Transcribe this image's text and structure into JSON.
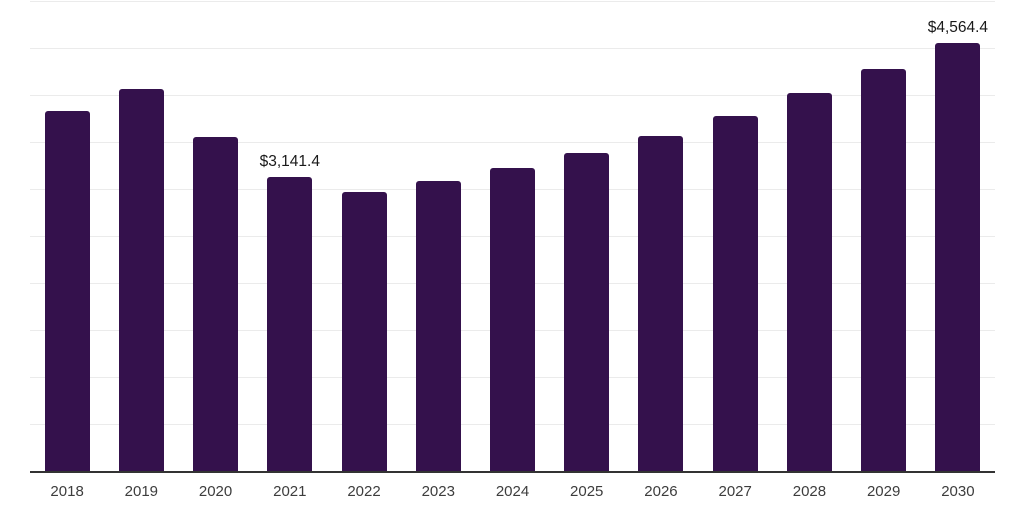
{
  "chart_data": {
    "type": "bar",
    "title": "",
    "xlabel": "",
    "ylabel": "",
    "categories": [
      "2018",
      "2019",
      "2020",
      "2021",
      "2022",
      "2023",
      "2024",
      "2025",
      "2026",
      "2027",
      "2028",
      "2029",
      "2030"
    ],
    "values": [
      3840,
      4070,
      3560,
      3141.4,
      2980,
      3100,
      3230,
      3390,
      3570,
      3790,
      4030,
      4290,
      4564.4
    ],
    "data_labels": {
      "2021": "$3,141.4",
      "2030": "$4,564.4"
    },
    "ylim": [
      0,
      5000
    ],
    "gridline_step": 500,
    "grid": "horizontal-only",
    "legend": "none",
    "colors": {
      "bar": "#34114C",
      "grid": "#ebebeb",
      "axis_line": "#333333",
      "value_label": "#1a1a1a",
      "tick_label": "#3d3d3d",
      "background": "#ffffff"
    }
  }
}
